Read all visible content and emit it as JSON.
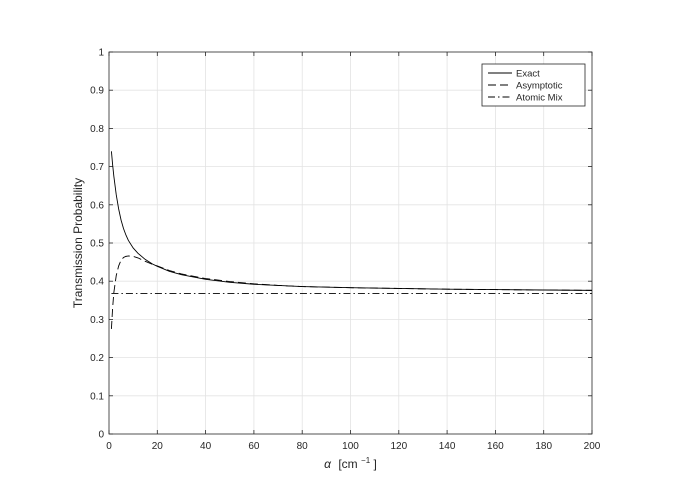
{
  "chart_data": {
    "type": "line",
    "title": "",
    "xlabel": {
      "symbol": "α",
      "unit_prefix": "[cm",
      "unit_exp": "−1",
      "unit_suffix": "]"
    },
    "ylabel": "Transmission Probability",
    "xlim": [
      0,
      200
    ],
    "ylim": [
      0,
      1
    ],
    "xticks": [
      0,
      20,
      40,
      60,
      80,
      100,
      120,
      140,
      160,
      180,
      200
    ],
    "yticks": [
      0,
      0.1,
      0.2,
      0.3,
      0.4,
      0.5,
      0.6,
      0.7,
      0.8,
      0.9,
      1
    ],
    "ytick_labels": [
      "0",
      "0.1",
      "0.2",
      "0.3",
      "0.4",
      "0.5",
      "0.6",
      "0.7",
      "0.8",
      "0.9",
      "1"
    ],
    "grid": true,
    "legend_position": "top-right",
    "series": [
      {
        "name": "Exact",
        "style": "solid",
        "x": [
          1,
          1.5,
          2,
          3,
          4,
          5,
          6,
          7,
          8,
          10,
          12,
          15,
          18,
          20,
          25,
          30,
          40,
          50,
          60,
          70,
          80,
          100,
          120,
          140,
          160,
          180,
          200
        ],
        "y": [
          0.74,
          0.705,
          0.675,
          0.626,
          0.589,
          0.56,
          0.538,
          0.521,
          0.507,
          0.487,
          0.473,
          0.457,
          0.445,
          0.439,
          0.426,
          0.417,
          0.405,
          0.397,
          0.392,
          0.389,
          0.386,
          0.383,
          0.381,
          0.379,
          0.378,
          0.377,
          0.376
        ]
      },
      {
        "name": "Asymptotic",
        "style": "dashed",
        "x": [
          1,
          1.5,
          2,
          3,
          4,
          5,
          6,
          7,
          8,
          10,
          12,
          15,
          18,
          20,
          25,
          30,
          40,
          50,
          60,
          70,
          80,
          100,
          120,
          140,
          160,
          180,
          200
        ],
        "y": [
          0.275,
          0.33,
          0.37,
          0.415,
          0.44,
          0.455,
          0.462,
          0.465,
          0.466,
          0.465,
          0.461,
          0.452,
          0.444,
          0.44,
          0.428,
          0.419,
          0.407,
          0.399,
          0.393,
          0.389,
          0.386,
          0.383,
          0.381,
          0.379,
          0.378,
          0.377,
          0.376
        ]
      },
      {
        "name": "Atomic Mix",
        "style": "dashdot",
        "x": [
          1,
          200
        ],
        "y": [
          0.368,
          0.368
        ]
      }
    ]
  }
}
